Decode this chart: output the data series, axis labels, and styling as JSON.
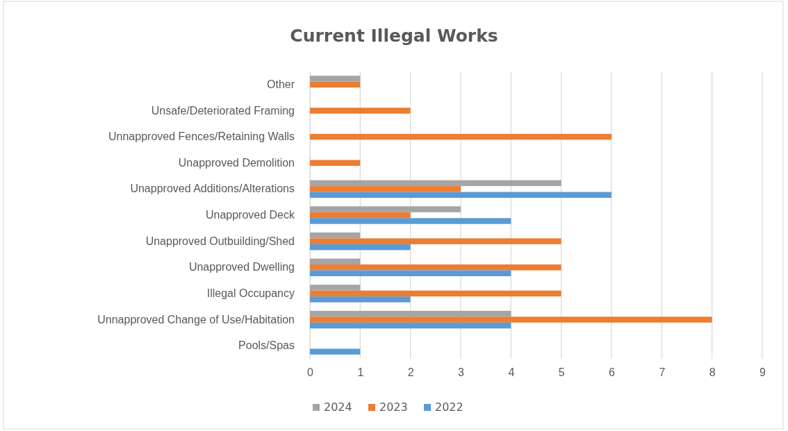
{
  "chart_data": {
    "type": "bar",
    "orientation": "horizontal",
    "title": "Current Illegal Works",
    "categories": [
      "Other",
      "Unsafe/Deteriorated Framing",
      "Unnapproved Fences/Retaining Walls",
      "Unapproved Demolition",
      "Unapproved Additions/Alterations",
      "Unapproved Deck",
      "Unapproved Outbuilding/Shed",
      "Unapproved Dwelling",
      "Illegal Occupancy",
      "Unnapproved Change of Use/Habitation",
      "Pools/Spas"
    ],
    "series": [
      {
        "name": "2024",
        "color": "#a5a5a5",
        "values": [
          1,
          null,
          null,
          null,
          5,
          3,
          1,
          1,
          1,
          4,
          null
        ]
      },
      {
        "name": "2023",
        "color": "#ed7d31",
        "values": [
          1,
          2,
          6,
          1,
          3,
          2,
          5,
          5,
          5,
          8,
          null
        ]
      },
      {
        "name": "2022",
        "color": "#5b9bd5",
        "values": [
          null,
          null,
          null,
          null,
          6,
          4,
          2,
          4,
          2,
          4,
          1
        ]
      }
    ],
    "xlim": [
      0,
      9
    ],
    "xticks": [
      0,
      1,
      2,
      3,
      4,
      5,
      6,
      7,
      8,
      9
    ],
    "grid": "x",
    "legend": "bottom"
  }
}
